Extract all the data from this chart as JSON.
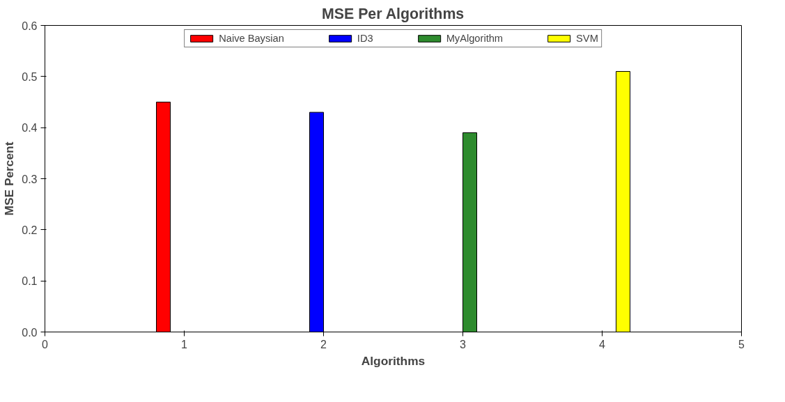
{
  "chart_data": {
    "type": "bar",
    "title": "MSE Per Algorithms",
    "xlabel": "Algorithms",
    "ylabel": "MSE Percent",
    "series": [
      {
        "name": "Naive Baysian",
        "color": "#ff0000",
        "x": [
          0.85
        ],
        "values": [
          0.45
        ]
      },
      {
        "name": "ID3",
        "color": "#0000ff",
        "x": [
          1.95
        ],
        "values": [
          0.43
        ]
      },
      {
        "name": "MyAlgorithm",
        "color": "#2e8b2e",
        "x": [
          3.05
        ],
        "values": [
          0.39
        ]
      },
      {
        "name": "SVM",
        "color": "#ffff00",
        "x": [
          4.15
        ],
        "values": [
          0.51
        ]
      }
    ],
    "xlim": [
      0,
      5
    ],
    "xticks": [
      0,
      1,
      2,
      3,
      4,
      5
    ],
    "ylim": [
      0,
      0.6
    ],
    "yticks": [
      {
        "value": 0,
        "label": "0.0"
      },
      {
        "value": 0.1,
        "label": "0.1"
      },
      {
        "value": 0.2,
        "label": "0.2"
      },
      {
        "value": 0.3,
        "label": "0.3"
      },
      {
        "value": 0.4,
        "label": "0.4"
      },
      {
        "value": 0.5,
        "label": "0.5"
      },
      {
        "value": 0.6,
        "label": "0.6"
      }
    ],
    "grid": false,
    "legend": "top"
  }
}
